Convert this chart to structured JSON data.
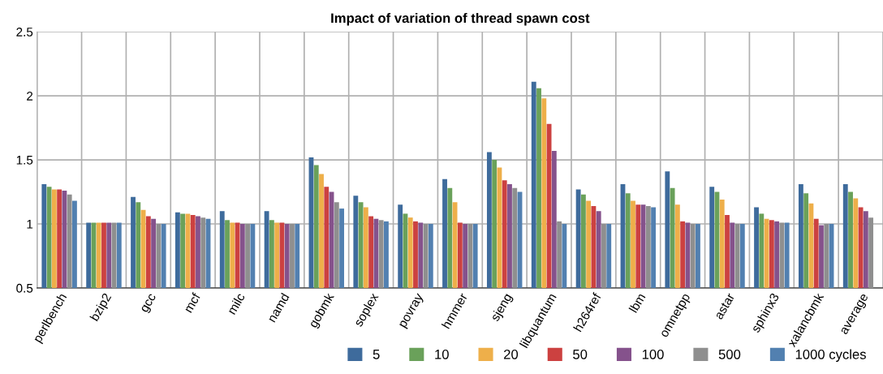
{
  "chart_data": {
    "type": "bar",
    "title": "Impact of variation of thread spawn cost",
    "categories": [
      "perlbench",
      "bzip2",
      "gcc",
      "mcf",
      "milc",
      "namd",
      "gobmk",
      "soplex",
      "povray",
      "hmmer",
      "sjeng",
      "libquantum",
      "h264ref",
      "lbm",
      "omnetpp",
      "astar",
      "sphinx3",
      "xalancbmk",
      "average"
    ],
    "series": [
      {
        "name": "5",
        "color": "#3e6b9c",
        "values": [
          1.31,
          1.01,
          1.21,
          1.09,
          1.1,
          1.1,
          1.52,
          1.22,
          1.15,
          1.35,
          1.56,
          2.11,
          1.27,
          1.31,
          1.41,
          1.29,
          1.13,
          1.31,
          1.31
        ]
      },
      {
        "name": "10",
        "color": "#6aa15a",
        "values": [
          1.29,
          1.01,
          1.17,
          1.08,
          1.03,
          1.03,
          1.46,
          1.17,
          1.08,
          1.28,
          1.5,
          2.06,
          1.23,
          1.24,
          1.28,
          1.25,
          1.08,
          1.24,
          1.25
        ]
      },
      {
        "name": "20",
        "color": "#eeaf4a",
        "values": [
          1.27,
          1.01,
          1.11,
          1.08,
          1.01,
          1.01,
          1.39,
          1.13,
          1.05,
          1.17,
          1.44,
          1.98,
          1.18,
          1.18,
          1.15,
          1.19,
          1.04,
          1.16,
          1.2
        ]
      },
      {
        "name": "50",
        "color": "#cc4140",
        "values": [
          1.27,
          1.01,
          1.06,
          1.07,
          1.01,
          1.01,
          1.29,
          1.06,
          1.02,
          1.01,
          1.34,
          1.78,
          1.14,
          1.15,
          1.02,
          1.07,
          1.03,
          1.04,
          1.13
        ]
      },
      {
        "name": "100",
        "color": "#85528c",
        "values": [
          1.26,
          1.01,
          1.04,
          1.06,
          1.0,
          1.0,
          1.25,
          1.04,
          1.01,
          1.0,
          1.31,
          1.57,
          1.1,
          1.15,
          1.01,
          1.01,
          1.02,
          0.99,
          1.1
        ]
      },
      {
        "name": "500",
        "color": "#8f8f8f",
        "values": [
          1.23,
          1.01,
          1.0,
          1.05,
          1.0,
          1.0,
          1.17,
          1.03,
          1.0,
          1.0,
          1.28,
          1.02,
          1.0,
          1.14,
          1.0,
          1.0,
          1.01,
          1.0,
          1.05
        ]
      },
      {
        "name": "1000 cycles",
        "color": "#5280b0",
        "values": [
          1.18,
          1.01,
          1.0,
          1.04,
          1.0,
          1.0,
          1.12,
          1.02,
          1.0,
          1.0,
          1.25,
          1.0,
          1.0,
          1.13,
          1.0,
          1.0,
          1.01,
          1.0,
          null
        ]
      }
    ],
    "ylim": [
      0.5,
      2.5
    ],
    "yticks": [
      0.5,
      1,
      1.5,
      2,
      2.5
    ],
    "grid": true,
    "legend": "bottom right"
  }
}
